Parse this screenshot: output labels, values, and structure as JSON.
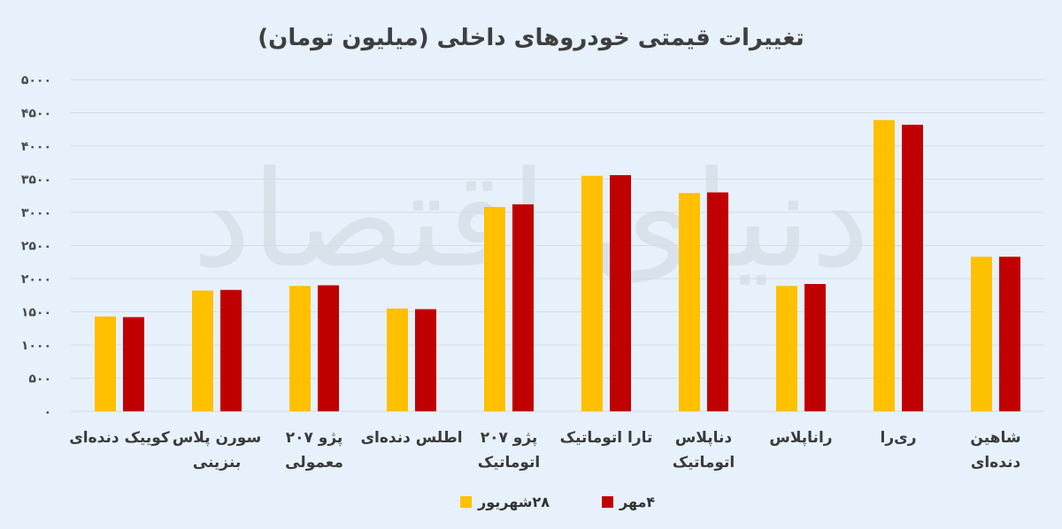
{
  "chart_data": {
    "type": "bar",
    "title": "تغییرات قیمتی خودروهای داخلی (میلیون تومان)",
    "categories": [
      [
        "کوییک دنده‌ای"
      ],
      [
        "سورن پلاس",
        "بنزینی"
      ],
      [
        "پژو ۲۰۷",
        "معمولی"
      ],
      [
        "اطلس دنده‌ای"
      ],
      [
        "پژو ۲۰۷",
        "اتوماتیک"
      ],
      [
        "تارا اتوماتیک"
      ],
      [
        "دناپلاس",
        "اتوماتیک"
      ],
      [
        "راناپلاس"
      ],
      [
        "ری‌را"
      ],
      [
        "شاهین",
        "دنده‌ای"
      ]
    ],
    "series": [
      {
        "name": "۲۸شهریور",
        "color": "#ffc000",
        "values": [
          1430,
          1820,
          1890,
          1550,
          3080,
          3550,
          3290,
          1890,
          4390,
          2330
        ]
      },
      {
        "name": "۴مهر",
        "color": "#c00000",
        "values": [
          1420,
          1830,
          1900,
          1540,
          3120,
          3560,
          3300,
          1920,
          4320,
          2330
        ]
      }
    ],
    "ylim": [
      0,
      5000
    ],
    "yticks": [
      "۰",
      "۵۰۰",
      "۱۰۰۰",
      "۱۵۰۰",
      "۲۰۰۰",
      "۲۵۰۰",
      "۳۰۰۰",
      "۳۵۰۰",
      "۴۰۰۰",
      "۴۵۰۰",
      "۵۰۰۰"
    ],
    "grid": true,
    "legend": "bottom-center",
    "watermark": "دنیای اقتصاد",
    "xlabel": "",
    "ylabel": ""
  }
}
